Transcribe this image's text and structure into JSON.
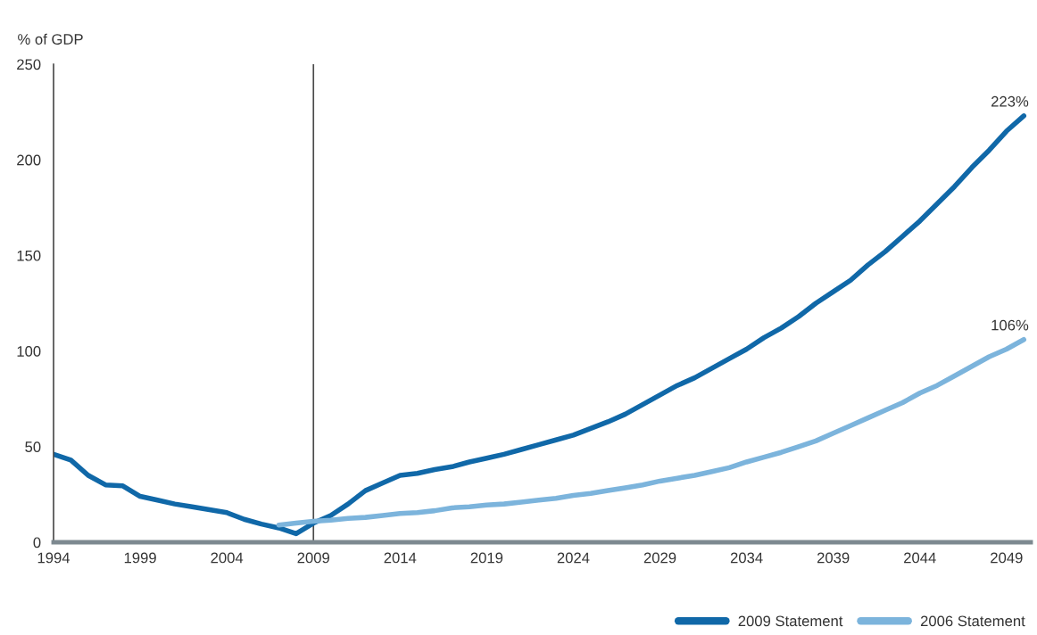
{
  "chart_data": {
    "type": "line",
    "ylabel": "% of GDP",
    "xlim": [
      1994,
      2050.4
    ],
    "xticks": [
      1994,
      1999,
      2004,
      2009,
      2014,
      2019,
      2024,
      2029,
      2034,
      2039,
      2044,
      2049
    ],
    "ylim": [
      0,
      250
    ],
    "yticks": [
      0,
      50,
      100,
      150,
      200,
      250
    ],
    "series": [
      {
        "name": "2009 Statement",
        "color": "#1068a8",
        "x": [
          1994,
          1995,
          1996,
          1997,
          1998,
          1999,
          2000,
          2001,
          2002,
          2003,
          2004,
          2005,
          2006,
          2007,
          2008,
          2009,
          2010,
          2011,
          2012,
          2013,
          2014,
          2015,
          2016,
          2017,
          2018,
          2019,
          2020,
          2021,
          2022,
          2023,
          2024,
          2025,
          2026,
          2027,
          2028,
          2029,
          2030,
          2031,
          2032,
          2033,
          2034,
          2035,
          2036,
          2037,
          2038,
          2039,
          2040,
          2041,
          2042,
          2043,
          2044,
          2045,
          2046,
          2047,
          2048,
          2049,
          2050
        ],
        "values": [
          46,
          43,
          35,
          30,
          29.5,
          24,
          22,
          20,
          18.5,
          17,
          15.5,
          12,
          9.5,
          7.5,
          4.5,
          10,
          14,
          20,
          27,
          31,
          35,
          36,
          38,
          39.5,
          42,
          44,
          46,
          48.5,
          51,
          53.5,
          56,
          59.5,
          63,
          67,
          72,
          77,
          82,
          86,
          91,
          96,
          101,
          107,
          112,
          118,
          125,
          131,
          137,
          145,
          152,
          160,
          168,
          177,
          186,
          196,
          205,
          215,
          223
        ]
      },
      {
        "name": "2006 Statement",
        "color": "#7cb4dc",
        "x": [
          2007,
          2008,
          2009,
          2010,
          2011,
          2012,
          2013,
          2014,
          2015,
          2016,
          2017,
          2018,
          2019,
          2020,
          2021,
          2022,
          2023,
          2024,
          2025,
          2026,
          2027,
          2028,
          2029,
          2030,
          2031,
          2032,
          2033,
          2034,
          2035,
          2036,
          2037,
          2038,
          2039,
          2040,
          2041,
          2042,
          2043,
          2044,
          2045,
          2046,
          2047,
          2048,
          2049,
          2050
        ],
        "values": [
          9,
          10,
          11,
          11.5,
          12.5,
          13,
          14,
          15,
          15.5,
          16.5,
          18,
          18.5,
          19.5,
          20,
          21,
          22,
          23,
          24.5,
          25.5,
          27,
          28.5,
          30,
          32,
          33.5,
          35,
          37,
          39,
          42,
          44.5,
          47,
          50,
          53,
          57,
          61,
          65,
          69,
          73,
          78,
          82,
          87,
          92,
          97,
          101,
          106
        ]
      }
    ],
    "ref_lines": [
      {
        "axis": "x",
        "value": 2009,
        "color": "#4a4a4a"
      }
    ],
    "annotations": [
      {
        "text": "223%",
        "x": 2050,
        "y": 223
      },
      {
        "text": "106%",
        "x": 2050,
        "y": 106
      }
    ],
    "legend": "bottom right",
    "line_style": "solid"
  }
}
